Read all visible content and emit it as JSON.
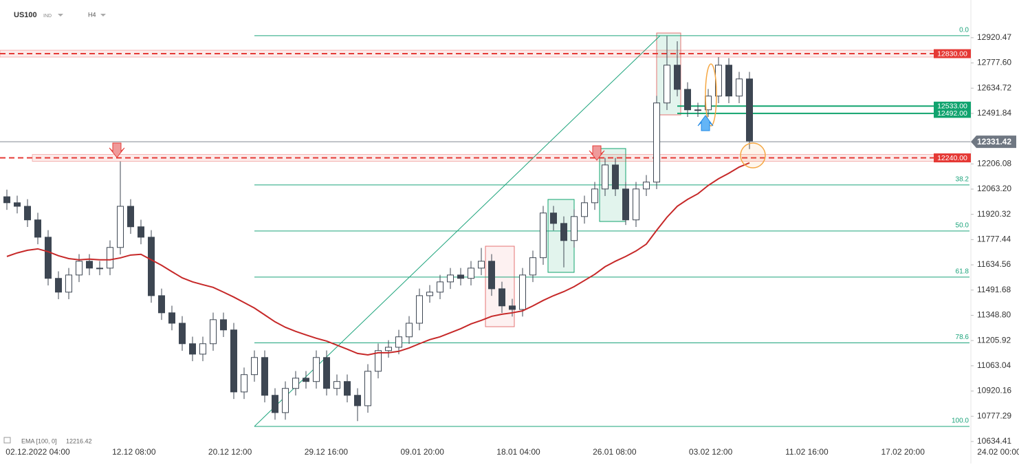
{
  "chart_data": {
    "type": "candlestick",
    "title": "US100",
    "instrument_type": "IND",
    "timeframe": "H4",
    "x_labels": [
      "02.12.2022 04:00",
      "12.12 08:00",
      "20.12 12:00",
      "29.12 16:00",
      "09.01 20:00",
      "18.01 04:00",
      "26.01 08:00",
      "03.02 12:00",
      "11.02 16:00",
      "17.02 20:00",
      "24.02 00:00"
    ],
    "ylim": [
      10603,
      13017
    ],
    "yticks": [
      {
        "value": 12920.47,
        "label": "12920.47"
      },
      {
        "value": 12777.6,
        "label": "12777.60"
      },
      {
        "value": 12634.72,
        "label": "12634.72"
      },
      {
        "value": 12491.84,
        "label": "12491.84"
      },
      {
        "value": 12206.08,
        "label": "12206.08"
      },
      {
        "value": 12063.2,
        "label": "12063.20"
      },
      {
        "value": 11920.32,
        "label": "11920.32"
      },
      {
        "value": 11777.44,
        "label": "11777.44"
      },
      {
        "value": 11634.56,
        "label": "11634.56"
      },
      {
        "value": 11491.68,
        "label": "11491.68"
      },
      {
        "value": 11348.8,
        "label": "11348.80"
      },
      {
        "value": 11205.92,
        "label": "11205.92"
      },
      {
        "value": 11063.04,
        "label": "11063.04"
      },
      {
        "value": 10920.16,
        "label": "10920.16"
      },
      {
        "value": 10777.29,
        "label": "10777.29"
      },
      {
        "value": 10634.41,
        "label": "10634.41"
      }
    ],
    "series": [
      {
        "name": "US100",
        "up_color": "#ffffff",
        "down_color": "#3d4652",
        "outline_color": "#3d4652",
        "open": [
          12020,
          11986,
          11966,
          11889,
          11791,
          11558,
          11480,
          11577,
          11655,
          11616,
          11616,
          11733,
          11966,
          11850,
          11791,
          11460,
          11363,
          11304,
          11188,
          11129,
          11188,
          11324,
          11266,
          10915,
          11013,
          11110,
          10896,
          10798,
          10935,
          10993,
          10974,
          11110,
          10935,
          10974,
          10896,
          10837,
          11032,
          11149,
          11168,
          11227,
          11304,
          11460,
          11480,
          11538,
          11577,
          11558,
          11616,
          11655,
          11499,
          11402,
          11382,
          11577,
          11675,
          11928,
          11869,
          11772,
          11908,
          11986,
          12064,
          12200,
          12064,
          11889,
          12064,
          12103,
          12551,
          12765,
          12628,
          12512,
          12512,
          12590,
          12765,
          12590,
          12687
        ],
        "high": [
          12060,
          12026,
          12006,
          11929,
          11831,
          11598,
          11617,
          11695,
          11695,
          11656,
          11773,
          12220,
          12006,
          11890,
          11831,
          11500,
          11403,
          11344,
          11228,
          11228,
          11364,
          11364,
          11306,
          11053,
          11150,
          11150,
          10936,
          10975,
          11033,
          11033,
          11150,
          11150,
          11014,
          11014,
          10936,
          11072,
          11189,
          11208,
          11267,
          11344,
          11500,
          11520,
          11578,
          11617,
          11617,
          11656,
          11730,
          11695,
          11539,
          11442,
          11617,
          11715,
          11968,
          11968,
          11909,
          11948,
          12026,
          12104,
          12240,
          12240,
          12104,
          12104,
          12143,
          12591,
          12930,
          12900,
          12668,
          12552,
          12630,
          12810,
          12805,
          12727,
          12727
        ],
        "low": [
          11946,
          11926,
          11849,
          11751,
          11518,
          11440,
          11440,
          11537,
          11576,
          11576,
          11576,
          11693,
          11810,
          11751,
          11420,
          11323,
          11264,
          11148,
          11089,
          11089,
          11148,
          11226,
          10875,
          10875,
          10973,
          10856,
          10758,
          10758,
          10895,
          10934,
          10934,
          10895,
          10895,
          10856,
          10750,
          10797,
          10992,
          11109,
          11128,
          11187,
          11264,
          11420,
          11440,
          11498,
          11518,
          11518,
          11576,
          11459,
          11362,
          11342,
          11342,
          11537,
          11635,
          11829,
          11620,
          11732,
          11868,
          11946,
          12024,
          12024,
          11860,
          11849,
          12024,
          12063,
          12511,
          12588,
          12472,
          12472,
          12472,
          12550,
          12550,
          12550,
          12290
        ],
        "close": [
          11986,
          11966,
          11889,
          11791,
          11558,
          11480,
          11577,
          11655,
          11616,
          11616,
          11733,
          11966,
          11850,
          11791,
          11460,
          11363,
          11304,
          11188,
          11129,
          11188,
          11324,
          11266,
          10915,
          11013,
          11110,
          10896,
          10798,
          10935,
          10993,
          10974,
          11110,
          10935,
          10974,
          10896,
          10837,
          11032,
          11149,
          11168,
          11227,
          11304,
          11460,
          11480,
          11538,
          11577,
          11558,
          11616,
          11655,
          11499,
          11402,
          11382,
          11577,
          11675,
          11928,
          11869,
          11772,
          11908,
          11986,
          12064,
          12200,
          12064,
          11889,
          12064,
          12103,
          12551,
          12765,
          12628,
          12512,
          12512,
          12590,
          12765,
          12590,
          12687,
          12336
        ]
      }
    ],
    "ema": {
      "name": "EMA [100, 0]",
      "value": 12216.42,
      "color": "#c62828",
      "values": [
        11682,
        11702,
        11717,
        11725,
        11709,
        11686,
        11670,
        11663,
        11667,
        11663,
        11663,
        11674,
        11690,
        11694,
        11663,
        11632,
        11596,
        11561,
        11538,
        11522,
        11507,
        11480,
        11452,
        11421,
        11390,
        11351,
        11312,
        11281,
        11258,
        11238,
        11219,
        11203,
        11180,
        11157,
        11133,
        11125,
        11137,
        11137,
        11145,
        11164,
        11188,
        11211,
        11227,
        11250,
        11273,
        11300,
        11320,
        11343,
        11355,
        11363,
        11374,
        11402,
        11433,
        11460,
        11483,
        11511,
        11546,
        11581,
        11624,
        11655,
        11682,
        11713,
        11752,
        11830,
        11904,
        11966,
        12005,
        12037,
        12084,
        12122,
        12153,
        12188,
        12212
      ]
    },
    "levels": [
      {
        "value": 12830,
        "label": "12830.00",
        "color": "#e53935",
        "dashed": true
      },
      {
        "value": 12240,
        "label": "12240.00",
        "color": "#e53935",
        "dashed": true
      },
      {
        "value": 12533,
        "label": "12533.00",
        "color": "#10a36e",
        "dashed": false
      },
      {
        "value": 12492,
        "label": "12492.00",
        "color": "#10a36e",
        "dashed": false
      }
    ],
    "current_price": 12331.42,
    "current_price_color": "#6f7782",
    "fib_color": "#1aa37a",
    "fib_levels": [
      {
        "value": 12932,
        "label": "0.0"
      },
      {
        "value": 12087,
        "label": "38.2"
      },
      {
        "value": 11826,
        "label": "50.0"
      },
      {
        "value": 11565,
        "label": "61.8"
      },
      {
        "value": 11193,
        "label": "78.6"
      },
      {
        "value": 10720,
        "label": "100.0"
      }
    ]
  }
}
